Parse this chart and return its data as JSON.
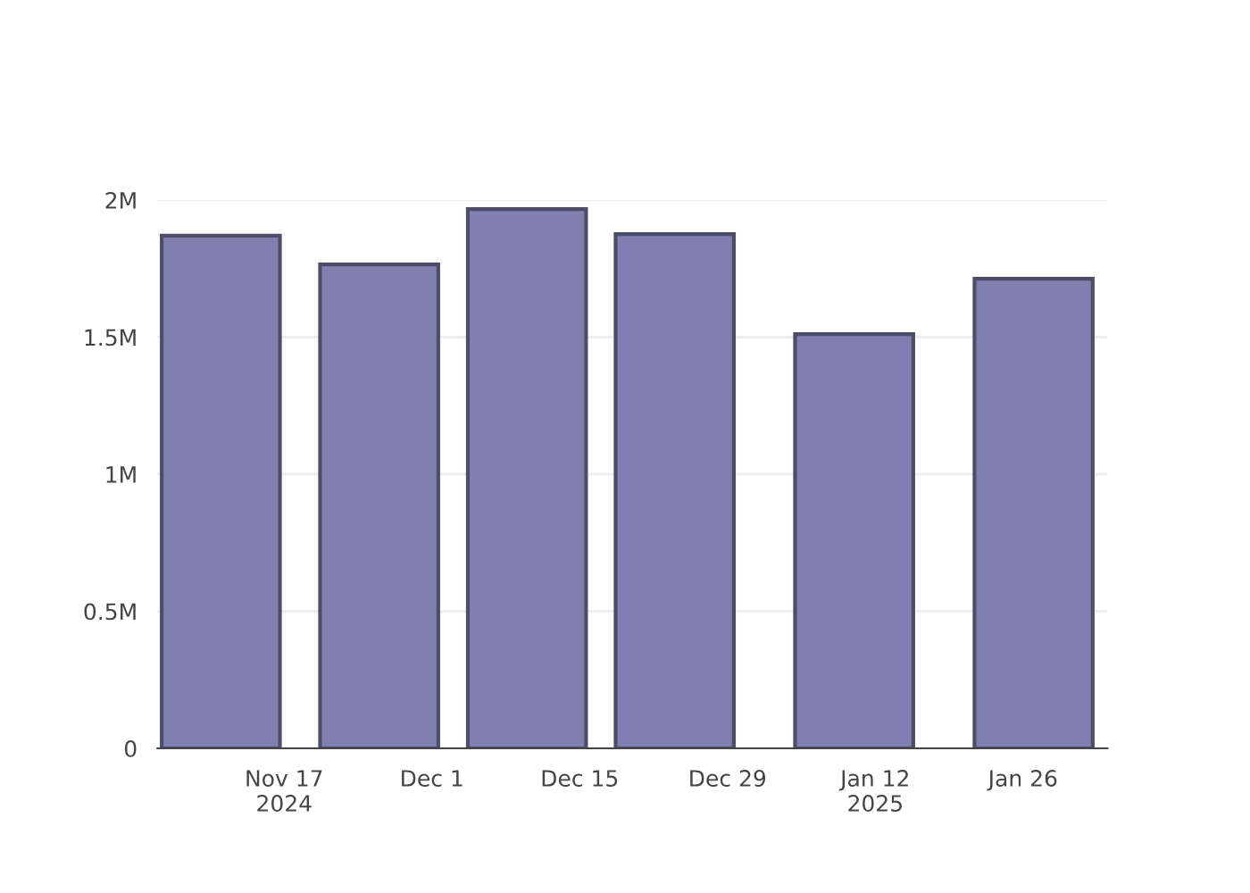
{
  "chart_data": {
    "type": "bar",
    "x": [
      "2024-11-11",
      "2024-11-26",
      "2024-12-10",
      "2024-12-24",
      "2025-01-10",
      "2025-01-27"
    ],
    "series": [
      {
        "color": "#8080b0",
        "values": [
          1870000,
          1765000,
          1967000,
          1876000,
          1511000,
          1713000
        ]
      }
    ],
    "xlim": [
      "2024-11-05",
      "2025-02-03"
    ],
    "xticks": [
      {
        "value": "2024-11-17",
        "label": "Nov 17\n2024"
      },
      {
        "value": "2024-12-01",
        "label": "Dec 1"
      },
      {
        "value": "2024-12-15",
        "label": "Dec 15"
      },
      {
        "value": "2024-12-29",
        "label": "Dec 29"
      },
      {
        "value": "2025-01-12",
        "label": "Jan 12\n2025"
      },
      {
        "value": "2025-01-26",
        "label": "Jan 26"
      }
    ],
    "ylim": [
      0,
      2000000
    ],
    "yticks": [
      {
        "value": 0,
        "label": "0"
      },
      {
        "value": 500000,
        "label": "0.5M"
      },
      {
        "value": 1000000,
        "label": "1M"
      },
      {
        "value": 1500000,
        "label": "1.5M"
      },
      {
        "value": 2000000,
        "label": "2M"
      }
    ],
    "grid": "y"
  }
}
